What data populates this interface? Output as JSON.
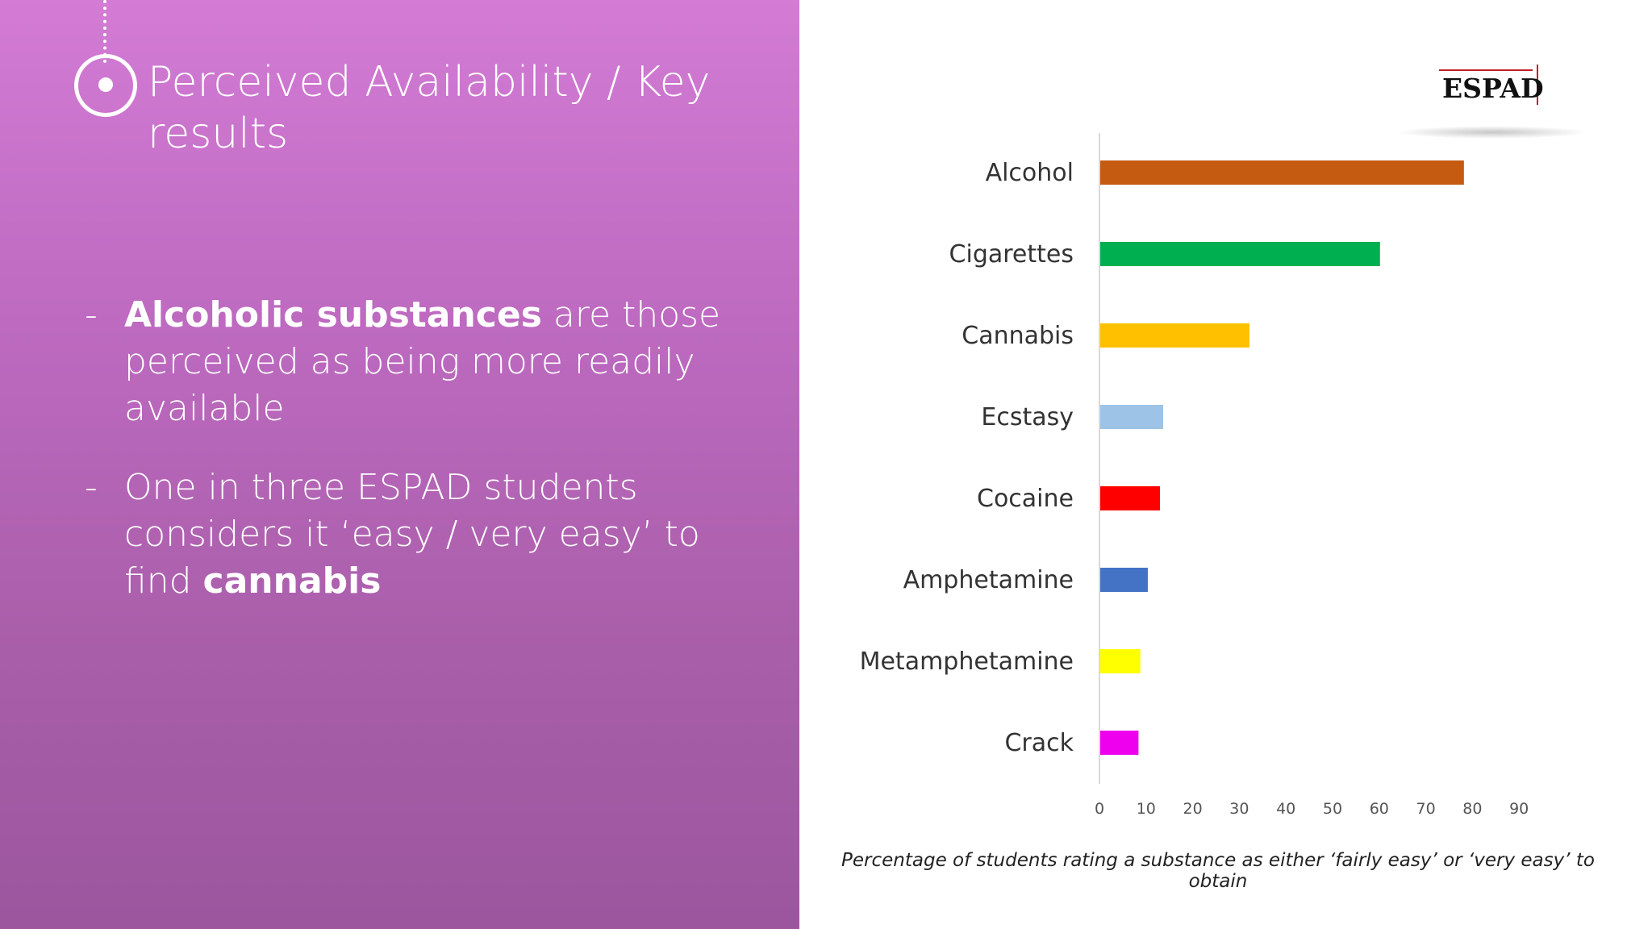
{
  "slide": {
    "title": "Perceived Availability / Key results",
    "bullets": [
      {
        "bold": "Alcoholic substances",
        "rest": " are those perceived as being more readily available",
        "bold_after": ""
      },
      {
        "bold": "",
        "rest": "One in three ESPAD students considers it ‘easy / very easy’ to find ",
        "bold_after": "cannabis"
      }
    ],
    "bullet_marker": "-",
    "colors": {
      "panel_top": "#d37bd5",
      "panel_bottom": "#9b569e",
      "text": "#ffffff"
    }
  },
  "logo": {
    "text": "ESPAD",
    "accent": "#c0202a"
  },
  "chart_data": {
    "type": "bar",
    "orientation": "horizontal",
    "categories": [
      "Alcohol",
      "Cigarettes",
      "Cannabis",
      "Ecstasy",
      "Cocaine",
      "Amphetamine",
      "Metamphetamine",
      "Crack"
    ],
    "values": [
      78,
      60,
      32,
      13.5,
      12.8,
      10.2,
      8.6,
      8.2
    ],
    "colors": [
      "#c55a11",
      "#00b050",
      "#ffc000",
      "#9dc3e6",
      "#ff0000",
      "#4472c4",
      "#ffff00",
      "#ee00ee"
    ],
    "ticks": [
      "0",
      "10",
      "20",
      "30",
      "40",
      "50",
      "60",
      "70",
      "80",
      "90"
    ],
    "xlim": [
      0,
      90
    ],
    "grid": false,
    "caption": "Percentage of students rating a substance as either ‘fairly easy’ or ‘very easy’ to obtain"
  }
}
